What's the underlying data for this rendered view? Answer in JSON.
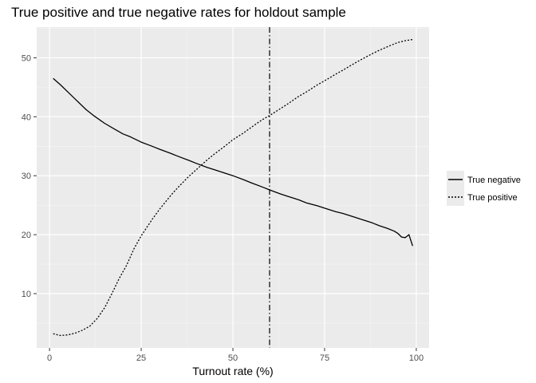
{
  "chart_data": {
    "type": "line",
    "title": "True positive and true negative rates for holdout sample",
    "xlabel": "Turnout rate (%)",
    "ylabel": "",
    "xlim": [
      -3.5,
      103.5
    ],
    "ylim": [
      0.8,
      55.2
    ],
    "x_ticks": [
      0,
      25,
      50,
      75,
      100
    ],
    "x_tick_labels": [
      "0",
      "25",
      "50",
      "75",
      "100"
    ],
    "y_ticks": [
      10,
      20,
      30,
      40,
      50
    ],
    "y_tick_labels": [
      "10",
      "20",
      "30",
      "40",
      "50"
    ],
    "grid": true,
    "legend_position": "right",
    "vline": {
      "x": 60,
      "linestyle": "dashdot"
    },
    "series": [
      {
        "name": "True negative",
        "linestyle": "solid",
        "x": [
          1,
          3,
          5,
          7,
          10,
          12,
          15,
          18,
          20,
          22,
          25,
          28,
          30,
          33,
          35,
          38,
          40,
          43,
          45,
          48,
          50,
          53,
          55,
          58,
          60,
          63,
          65,
          68,
          70,
          73,
          75,
          78,
          80,
          83,
          85,
          88,
          90,
          92,
          94,
          95,
          96,
          97,
          98,
          99
        ],
        "values": [
          46.5,
          45.4,
          44.2,
          43.0,
          41.2,
          40.2,
          38.9,
          37.8,
          37.1,
          36.6,
          35.7,
          35.0,
          34.5,
          33.8,
          33.3,
          32.6,
          32.1,
          31.4,
          31.0,
          30.4,
          30.0,
          29.3,
          28.8,
          28.1,
          27.6,
          26.9,
          26.5,
          25.9,
          25.4,
          24.9,
          24.5,
          23.9,
          23.6,
          23.0,
          22.6,
          22.0,
          21.5,
          21.1,
          20.6,
          20.2,
          19.6,
          19.5,
          20.0,
          18.1
        ]
      },
      {
        "name": "True positive",
        "linestyle": "dotted",
        "x": [
          1,
          3,
          5,
          7,
          9,
          11,
          13,
          15,
          17,
          19,
          21,
          23,
          25,
          28,
          30,
          33,
          35,
          38,
          40,
          43,
          45,
          48,
          50,
          53,
          55,
          58,
          60,
          63,
          65,
          68,
          70,
          73,
          75,
          78,
          80,
          83,
          85,
          88,
          90,
          93,
          95,
          97,
          99
        ],
        "values": [
          3.2,
          2.9,
          3.0,
          3.3,
          3.8,
          4.5,
          5.8,
          7.6,
          10.0,
          12.6,
          14.8,
          17.6,
          19.8,
          22.6,
          24.3,
          26.6,
          28.0,
          29.9,
          31.0,
          32.7,
          33.7,
          35.1,
          36.1,
          37.3,
          38.2,
          39.5,
          40.2,
          41.4,
          42.2,
          43.5,
          44.2,
          45.4,
          46.1,
          47.2,
          47.9,
          49.0,
          49.7,
          50.7,
          51.3,
          52.1,
          52.6,
          52.9,
          53.1
        ]
      }
    ]
  }
}
